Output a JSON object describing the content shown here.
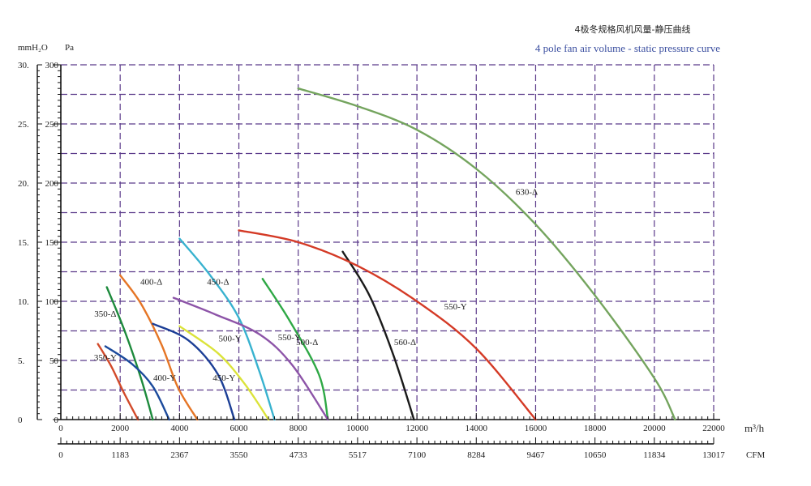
{
  "chart_data": {
    "type": "line",
    "title": "4极冬规格风机风量-静压曲线",
    "subtitle": "4 pole fan air volume - static pressure curve",
    "xlabel": "m³/h",
    "x2label": "CFM",
    "ylabel_left": "mmH₂O",
    "ylabel_right": "Pa",
    "xlim": [
      0,
      22000
    ],
    "ylim": [
      0,
      300
    ],
    "grid": true,
    "x_ticks": [
      "0",
      "2000",
      "4000",
      "6000",
      "8000",
      "10000",
      "12000",
      "14000",
      "16000",
      "18000",
      "20000",
      "22000"
    ],
    "x2_ticks": [
      "0",
      "1183",
      "2367",
      "3550",
      "4733",
      "5517",
      "7100",
      "8284",
      "9467",
      "10650",
      "11834",
      "13017"
    ],
    "y_ticks_pa": [
      "0",
      "50",
      "100",
      "150",
      "200",
      "250",
      "300"
    ],
    "y_ticks_mm": [
      "0",
      "5.",
      "10.",
      "15.",
      "20.",
      "25.",
      "30."
    ],
    "series": [
      {
        "name": "350-Y",
        "color": "#d24a2a",
        "label_at": [
          1500,
          50
        ],
        "points": [
          [
            1250,
            64
          ],
          [
            1700,
            45
          ],
          [
            2100,
            24
          ],
          [
            2600,
            0
          ]
        ]
      },
      {
        "name": "350-Δ",
        "color": "#1d8a3c",
        "label_at": [
          1500,
          87
        ],
        "points": [
          [
            1550,
            112
          ],
          [
            2150,
            75
          ],
          [
            2700,
            35
          ],
          [
            3100,
            0
          ]
        ]
      },
      {
        "name": "400-Y",
        "color": "#1b4a9c",
        "label_at": [
          3500,
          33
        ],
        "points": [
          [
            1500,
            62
          ],
          [
            2400,
            47
          ],
          [
            3100,
            28
          ],
          [
            3650,
            0
          ]
        ]
      },
      {
        "name": "400-Δ",
        "color": "#e57525",
        "label_at": [
          3050,
          114
        ],
        "points": [
          [
            2000,
            122
          ],
          [
            2700,
            98
          ],
          [
            3400,
            63
          ],
          [
            3950,
            27
          ],
          [
            4600,
            0
          ]
        ]
      },
      {
        "name": "450-Y",
        "color": "#1b3e96",
        "label_at": [
          5500,
          33
        ],
        "points": [
          [
            3100,
            81
          ],
          [
            4300,
            67
          ],
          [
            5300,
            38
          ],
          [
            5850,
            0
          ]
        ]
      },
      {
        "name": "450-Δ",
        "color": "#38b2cf",
        "label_at": [
          5300,
          114
        ],
        "points": [
          [
            4000,
            153
          ],
          [
            5000,
            123
          ],
          [
            6000,
            86
          ],
          [
            6700,
            40
          ],
          [
            7200,
            0
          ]
        ]
      },
      {
        "name": "500-Y",
        "color": "#dbe33a",
        "label_at": [
          5700,
          66
        ],
        "points": [
          [
            4000,
            79
          ],
          [
            5300,
            56
          ],
          [
            6200,
            30
          ],
          [
            7000,
            0
          ]
        ]
      },
      {
        "name": "500-Δ",
        "color": "#2ea845",
        "label_at": [
          8300,
          63
        ],
        "points": [
          [
            6800,
            119
          ],
          [
            7700,
            84
          ],
          [
            8700,
            38
          ],
          [
            9000,
            0
          ]
        ]
      },
      {
        "name": "550-Y",
        "color": "#8d54a8",
        "label_at": [
          7700,
          67
        ],
        "points": [
          [
            3800,
            103
          ],
          [
            5200,
            89
          ],
          [
            6700,
            72
          ],
          [
            7800,
            46
          ],
          [
            9000,
            0
          ]
        ]
      },
      {
        "name": "560-Δ",
        "color": "#1a1a1a",
        "label_at": [
          11600,
          63
        ],
        "points": [
          [
            9500,
            142
          ],
          [
            10400,
            105
          ],
          [
            11200,
            55
          ],
          [
            11900,
            0
          ]
        ]
      },
      {
        "name": "550-Y",
        "color": "#d43a26",
        "label_at": [
          13300,
          93
        ],
        "points": [
          [
            6000,
            160
          ],
          [
            8000,
            150
          ],
          [
            10000,
            130
          ],
          [
            12000,
            100
          ],
          [
            14000,
            60
          ],
          [
            16000,
            0
          ]
        ]
      },
      {
        "name": "630-Δ",
        "color": "#74a45e",
        "label_at": [
          15700,
          190
        ],
        "points": [
          [
            8000,
            280
          ],
          [
            10000,
            265
          ],
          [
            12000,
            245
          ],
          [
            14000,
            212
          ],
          [
            16000,
            165
          ],
          [
            18000,
            105
          ],
          [
            20000,
            35
          ],
          [
            20700,
            0
          ]
        ]
      }
    ]
  }
}
